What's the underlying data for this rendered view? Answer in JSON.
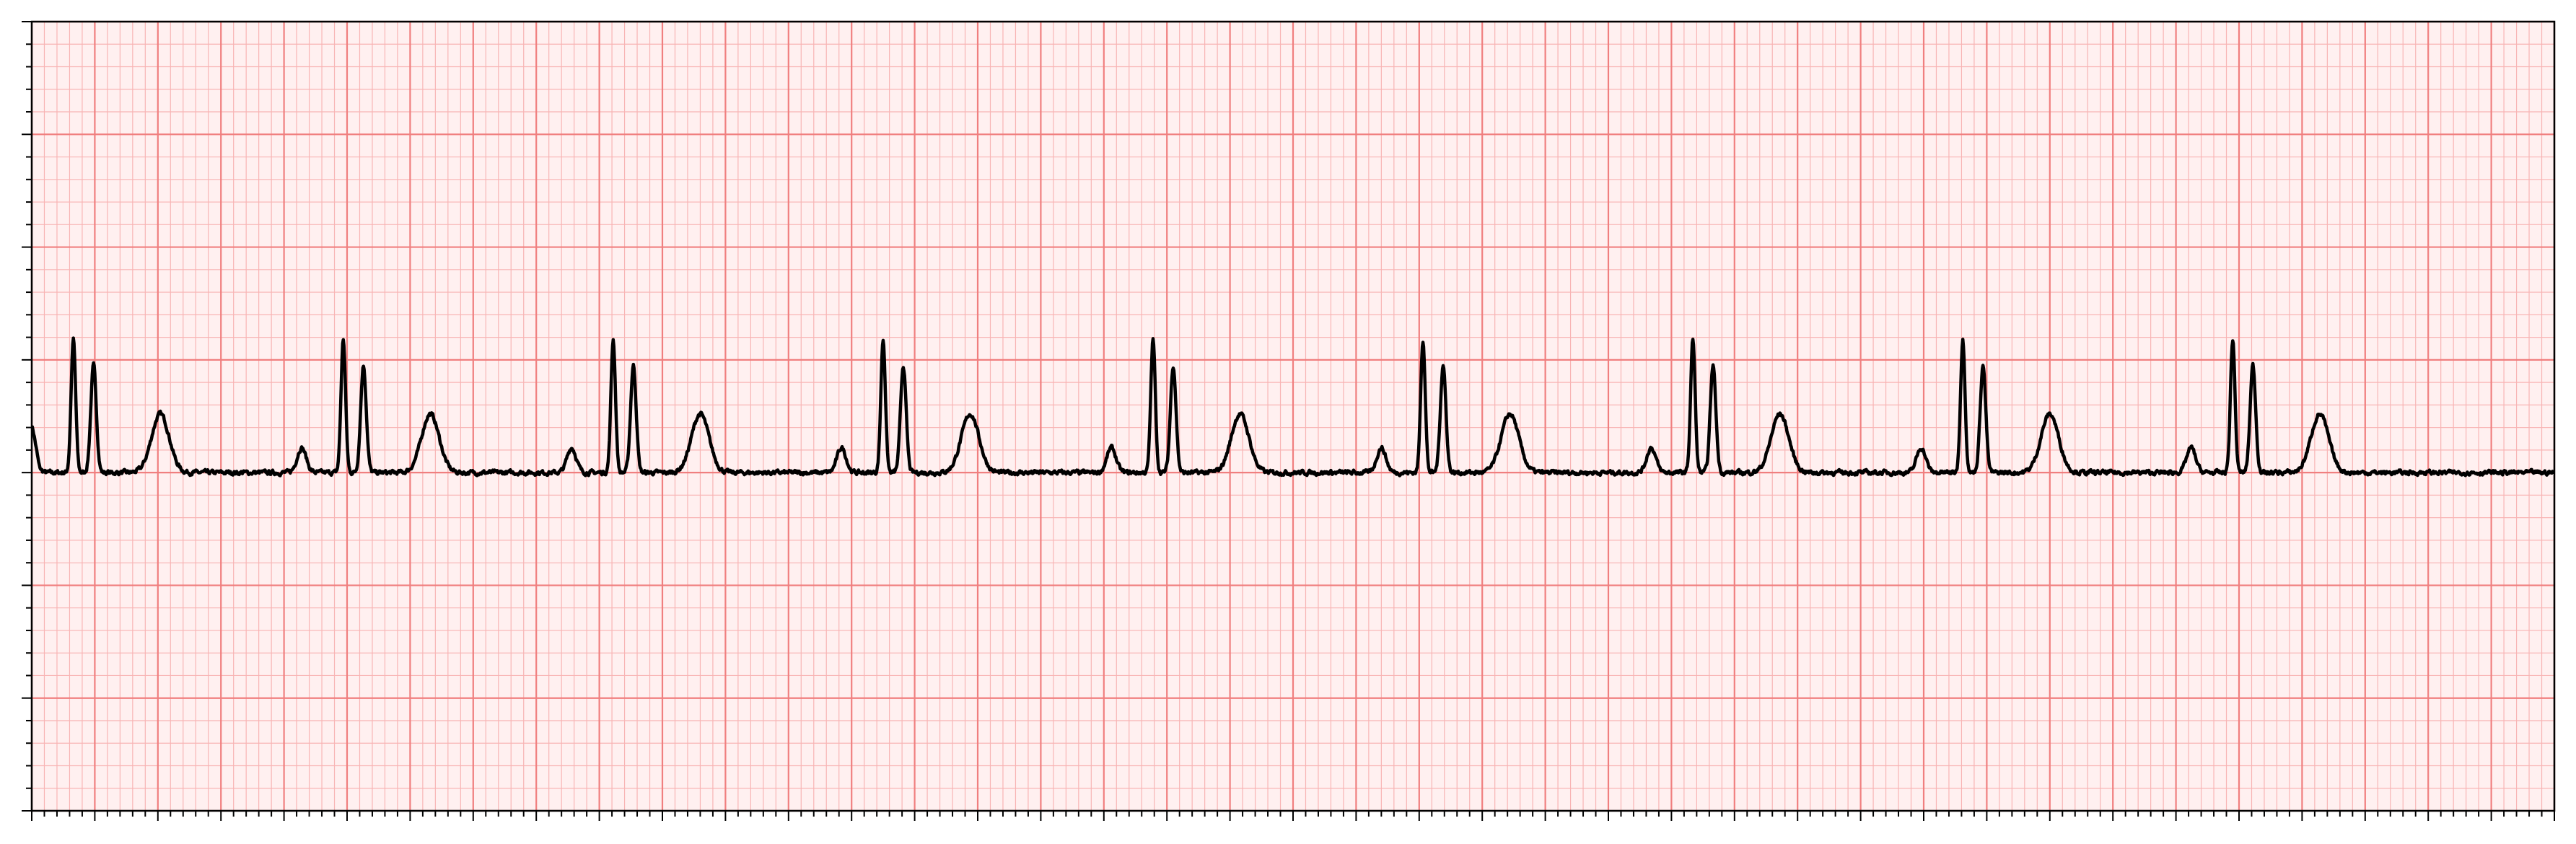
{
  "colors": {
    "background": "#fff0f0",
    "minor_grid": "#f8b4b4",
    "major_grid": "#f07f7f",
    "trace": "#000000",
    "axes": "#000000"
  },
  "chart_data": {
    "type": "line",
    "title": "",
    "xlabel": "",
    "ylabel": "",
    "xlim": [
      0,
      10
    ],
    "ylim": [
      -3,
      4
    ],
    "tick_labels_shown": false,
    "grid": {
      "visible": true,
      "major_x": 0.25,
      "minor_x": 0.05,
      "major_y": 1.0,
      "minor_y": 0.2
    },
    "series": [
      {
        "beat_times": [
          0.0,
          1.07,
          2.14,
          3.21,
          4.28,
          5.35,
          6.42,
          7.49,
          8.56
        ],
        "beat_waves": [
          {
            "name": "P",
            "offset": 0.0,
            "amplitude": 0.22,
            "width": 0.018
          },
          {
            "name": "R1",
            "offset": 0.165,
            "amplitude": 1.18,
            "width": 0.009
          },
          {
            "name": "R2",
            "offset": 0.245,
            "amplitude": 0.95,
            "width": 0.011
          },
          {
            "name": "T",
            "offset": 0.51,
            "amplitude": 0.52,
            "width": 0.035
          }
        ],
        "baseline": 0.0,
        "trace_start_value": 0.2,
        "noise_amplitude": 0.035
      }
    ]
  }
}
